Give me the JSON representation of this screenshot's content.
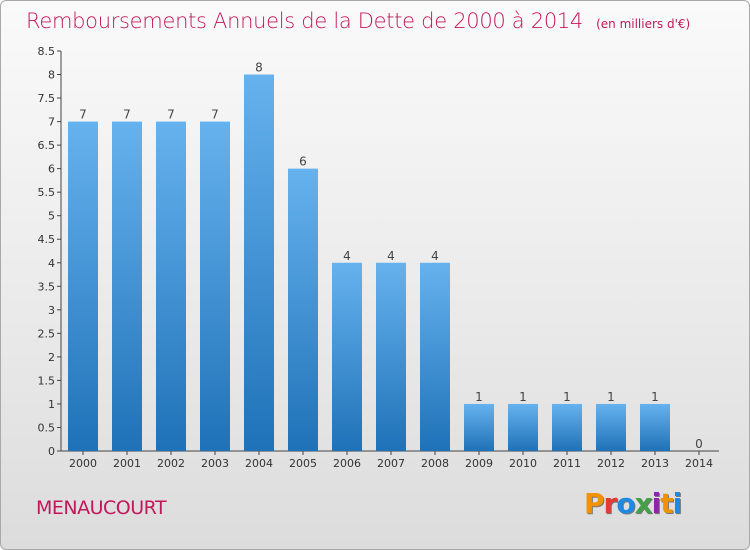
{
  "header": {
    "title": "Remboursements Annuels de la Dette de 2000 à 2014",
    "subtitle": "(en milliers d'€)"
  },
  "footer": {
    "commune": "MENAUCOURT",
    "logo": "Proxiti"
  },
  "colors": {
    "accent": "#c2185b",
    "bar_top": "#66b2ee",
    "bar_bottom": "#1f72b8",
    "logo_letters": [
      "#f39200",
      "#e53935",
      "#1e88e5",
      "#43a047",
      "#8e24aa",
      "#f39200",
      "#1e88e5"
    ]
  },
  "chart_data": {
    "type": "bar",
    "categories": [
      "2000",
      "2001",
      "2002",
      "2003",
      "2004",
      "2005",
      "2006",
      "2007",
      "2008",
      "2009",
      "2010",
      "2011",
      "2012",
      "2013",
      "2014"
    ],
    "values": [
      7,
      7,
      7,
      7,
      8,
      6,
      4,
      4,
      4,
      1,
      1,
      1,
      1,
      1,
      0
    ],
    "value_labels": [
      "7",
      "7",
      "7",
      "7",
      "8",
      "6",
      "4",
      "4",
      "4",
      "1",
      "1",
      "1",
      "1",
      "1",
      "0"
    ],
    "ylim": [
      0,
      8.5
    ],
    "yticks": [
      0,
      0.5,
      1,
      1.5,
      2,
      2.5,
      3,
      3.5,
      4,
      4.5,
      5,
      5.5,
      6,
      6.5,
      7,
      7.5,
      8,
      8.5
    ],
    "ytick_labels": [
      "0",
      "0.5",
      "1",
      "1.5",
      "2",
      "2.5",
      "3",
      "3.5",
      "4",
      "4.5",
      "5",
      "5.5",
      "6",
      "6.5",
      "7",
      "7.5",
      "8",
      "8.5"
    ],
    "title": "Remboursements Annuels de la Dette de 2000 à 2014",
    "xlabel": "",
    "ylabel": "",
    "grid": false,
    "legend": "none"
  }
}
